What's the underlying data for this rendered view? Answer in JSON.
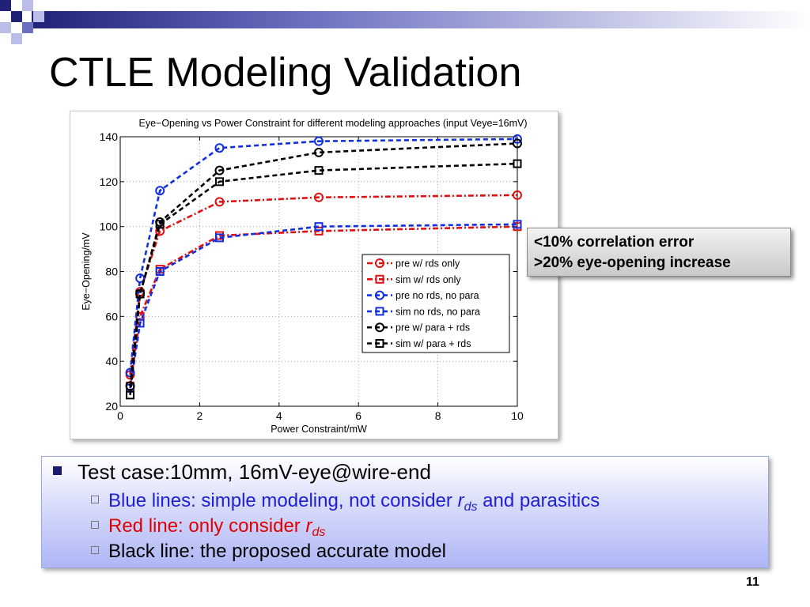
{
  "slide": {
    "title": "CTLE Modeling Validation",
    "page_number": "11",
    "colors": {
      "navy": "#1f2277",
      "mid_blue": "#6a6fc0",
      "light_blue": "#b9bde8",
      "gray": "#bdbdbd"
    }
  },
  "callout": {
    "line1": "<10% correlation error",
    "line2": ">20% eye-opening increase"
  },
  "bullets": {
    "main": "Test case:10mm, 16mV-eye@wire-end",
    "items": [
      {
        "text": "Blue lines: simple modeling, not consider ",
        "r": "r",
        "ds": "ds",
        "tail": " and parasitics",
        "color": "#1f1fd6"
      },
      {
        "text": "Red line: only consider ",
        "r": "r",
        "ds": "ds",
        "tail": "",
        "color": "#e00000"
      },
      {
        "text": "Black line: the proposed accurate model",
        "color": "#000000"
      }
    ]
  },
  "chart_data": {
    "type": "line",
    "title": "Eye−Opening vs Power Constraint for different modeling approaches (input Veye=16mV)",
    "xlabel": "Power Constraint/mW",
    "ylabel": "Eye−Opening/mV",
    "xlim": [
      0,
      10
    ],
    "ylim": [
      20,
      140
    ],
    "xticks": [
      0,
      2,
      4,
      6,
      8,
      10
    ],
    "yticks": [
      20,
      40,
      60,
      80,
      100,
      120,
      140
    ],
    "grid": true,
    "legend_position": "center-right",
    "x": [
      0.25,
      0.5,
      1,
      2.5,
      5,
      10
    ],
    "series": [
      {
        "name": "pre w/ rds only",
        "values": [
          34,
          71,
          98,
          111,
          113,
          114
        ],
        "color": "#e01010",
        "dash": "dashdot",
        "marker": "circle"
      },
      {
        "name": "sim w/ rds only",
        "values": [
          29,
          60,
          81,
          96,
          98,
          100
        ],
        "color": "#e01010",
        "dash": "dashdot",
        "marker": "square"
      },
      {
        "name": "pre no rds, no para",
        "values": [
          35,
          77,
          116,
          135,
          138,
          139
        ],
        "color": "#1030e0",
        "dash": "dashed",
        "marker": "circle"
      },
      {
        "name": "sim no rds, no para",
        "values": [
          28,
          57,
          80,
          95,
          100,
          101
        ],
        "color": "#1030e0",
        "dash": "dashed",
        "marker": "square"
      },
      {
        "name": "pre w/ para + rds",
        "values": [
          29,
          70,
          102,
          125,
          133,
          137
        ],
        "color": "#000000",
        "dash": "dashed",
        "marker": "circle"
      },
      {
        "name": "sim w/ para + rds",
        "values": [
          25,
          70,
          101,
          120,
          125,
          128
        ],
        "color": "#000000",
        "dash": "dashed",
        "marker": "square"
      }
    ]
  }
}
